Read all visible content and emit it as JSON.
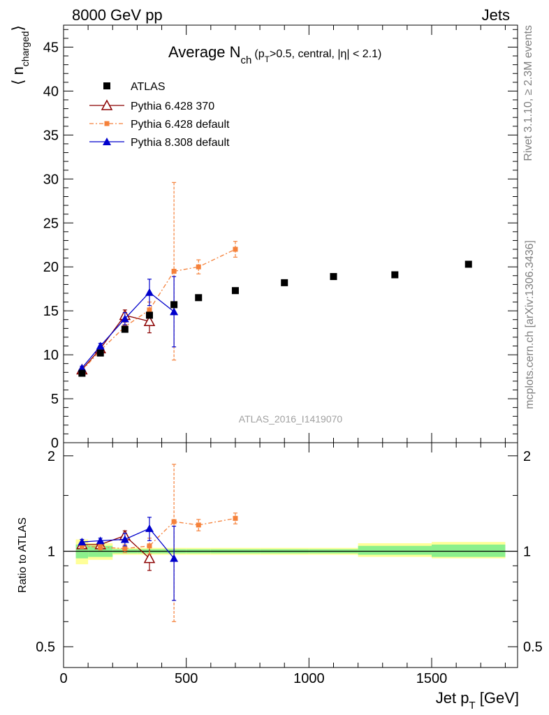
{
  "header": {
    "energy_label": "8000 GeV pp",
    "process_label": "Jets"
  },
  "side_labels": {
    "rivet": "Rivet 3.1.10, ≥ 2.3M events",
    "mcplots": "mcplots.cern.ch [arXiv:1306.3436]"
  },
  "watermark": "ATLAS_2016_I1419070",
  "colors": {
    "atlas": "#000000",
    "pythia6_370": "#8b0000",
    "pythia6_default": "#f5813a",
    "pythia8_default": "#0000cc",
    "band_inner": "#8cf08c",
    "band_outer": "#ffff99"
  },
  "chart_data": [
    {
      "type": "scatter",
      "title": {
        "main": "Average N",
        "sub": "ch",
        "rest_a": "(p",
        "rest_sub": "T",
        "rest_b": ">0.5, central, |η| < 2.1)"
      },
      "ylabel": {
        "main": "⟨ n",
        "sub": "charged",
        "close": "⟩"
      },
      "xlim": [
        0,
        1850
      ],
      "ylim": [
        0,
        47.5
      ],
      "yticks": [
        "0",
        "5",
        "10",
        "15",
        "20",
        "25",
        "30",
        "35",
        "40",
        "45"
      ],
      "legend_placement": "top-left",
      "series": [
        {
          "name": "ATLAS",
          "marker": "square",
          "x": [
            75,
            150,
            250,
            350,
            450,
            550,
            700,
            900,
            1100,
            1350,
            1650
          ],
          "y": [
            7.9,
            10.2,
            12.9,
            14.5,
            15.7,
            16.5,
            17.3,
            18.2,
            18.9,
            19.1,
            20.3
          ]
        },
        {
          "name": "Pythia 6.428 370",
          "marker": "open-triangle",
          "x": [
            75,
            150,
            250,
            350
          ],
          "y": [
            8.3,
            10.7,
            14.5,
            13.8
          ],
          "err": [
            0.2,
            0.3,
            0.6,
            1.3
          ]
        },
        {
          "name": "Pythia 6.428 default",
          "marker": "small-square",
          "x": [
            75,
            150,
            250,
            350,
            450,
            550,
            700
          ],
          "y": [
            8.2,
            10.5,
            13.2,
            15.1,
            19.5,
            20.0,
            22.0
          ],
          "err": [
            0.2,
            0.3,
            0.5,
            0.9,
            10.1,
            0.8,
            0.9
          ]
        },
        {
          "name": "Pythia 8.308 default",
          "marker": "triangle",
          "x": [
            75,
            150,
            250,
            350,
            450
          ],
          "y": [
            8.5,
            11.0,
            14.1,
            17.1,
            14.9
          ],
          "err": [
            0.2,
            0.3,
            0.7,
            1.5,
            4.0
          ]
        }
      ]
    },
    {
      "type": "scatter",
      "ylabel": "Ratio to ATLAS",
      "xlabel": {
        "main": "Jet p",
        "sub": "T",
        "rest": " [GeV]"
      },
      "xlim": [
        0,
        1850
      ],
      "ylim": [
        0.43,
        2.2
      ],
      "log_y": true,
      "yticks": [
        "0.5",
        "1",
        "2"
      ],
      "xticks": [
        "0",
        "500",
        "1000",
        "1500"
      ],
      "reference_line": 1.0,
      "bands": [
        {
          "x0": 50,
          "x1": 100,
          "inner": [
            0.95,
            1.05
          ],
          "outer": [
            0.91,
            1.09
          ]
        },
        {
          "x0": 100,
          "x1": 200,
          "inner": [
            0.96,
            1.04
          ],
          "outer": [
            0.94,
            1.06
          ]
        },
        {
          "x0": 200,
          "x1": 300,
          "inner": [
            0.985,
            1.015
          ],
          "outer": [
            0.975,
            1.025
          ]
        },
        {
          "x0": 300,
          "x1": 400,
          "inner": [
            0.985,
            1.015
          ],
          "outer": [
            0.975,
            1.025
          ]
        },
        {
          "x0": 400,
          "x1": 500,
          "inner": [
            0.985,
            1.015
          ],
          "outer": [
            0.975,
            1.025
          ]
        },
        {
          "x0": 500,
          "x1": 600,
          "inner": [
            0.985,
            1.015
          ],
          "outer": [
            0.975,
            1.025
          ]
        },
        {
          "x0": 600,
          "x1": 800,
          "inner": [
            0.985,
            1.015
          ],
          "outer": [
            0.975,
            1.025
          ]
        },
        {
          "x0": 800,
          "x1": 1000,
          "inner": [
            0.985,
            1.015
          ],
          "outer": [
            0.975,
            1.025
          ]
        },
        {
          "x0": 1000,
          "x1": 1200,
          "inner": [
            0.985,
            1.015
          ],
          "outer": [
            0.975,
            1.025
          ]
        },
        {
          "x0": 1200,
          "x1": 1500,
          "inner": [
            0.975,
            1.04
          ],
          "outer": [
            0.96,
            1.06
          ]
        },
        {
          "x0": 1500,
          "x1": 1800,
          "inner": [
            0.96,
            1.05
          ],
          "outer": [
            0.95,
            1.07
          ]
        }
      ],
      "series": [
        {
          "name": "Pythia 6.428 370",
          "marker": "open-triangle",
          "x": [
            75,
            150,
            250,
            350
          ],
          "y": [
            1.05,
            1.05,
            1.12,
            0.95
          ],
          "err": [
            0.02,
            0.02,
            0.04,
            0.08
          ]
        },
        {
          "name": "Pythia 6.428 default",
          "marker": "small-square",
          "x": [
            75,
            150,
            250,
            350,
            450,
            550,
            700
          ],
          "y": [
            1.04,
            1.03,
            1.02,
            1.04,
            1.24,
            1.21,
            1.27
          ],
          "err": [
            0.02,
            0.02,
            0.03,
            0.06,
            0.64,
            0.05,
            0.05
          ]
        },
        {
          "name": "Pythia 8.308 default",
          "marker": "triangle",
          "x": [
            75,
            150,
            250,
            350,
            450
          ],
          "y": [
            1.07,
            1.08,
            1.09,
            1.18,
            0.95
          ],
          "err": [
            0.02,
            0.02,
            0.05,
            0.1,
            0.25
          ]
        }
      ]
    }
  ]
}
